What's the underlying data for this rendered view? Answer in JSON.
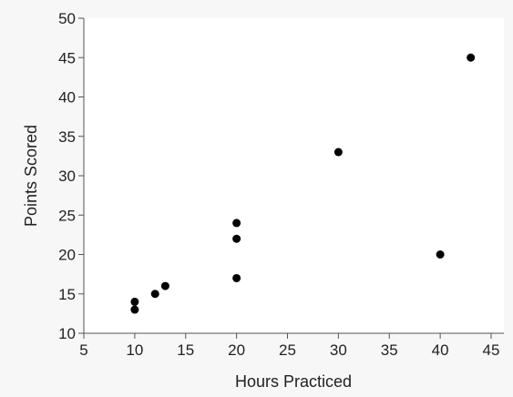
{
  "chart_data": {
    "type": "scatter",
    "title": "",
    "xlabel": "Hours Practiced",
    "ylabel": "Points Scored",
    "xlim": [
      5,
      45
    ],
    "ylim": [
      10,
      50
    ],
    "x_ticks": [
      "5",
      "10",
      "15",
      "20",
      "25",
      "30",
      "35",
      "40",
      "45"
    ],
    "y_ticks": [
      "10",
      "15",
      "20",
      "25",
      "30",
      "35",
      "40",
      "45",
      "50"
    ],
    "grid": false,
    "marker_color": "#000000",
    "background_color": "#ffffff",
    "points": [
      {
        "x": 10,
        "y": 14
      },
      {
        "x": 10,
        "y": 13
      },
      {
        "x": 12,
        "y": 15
      },
      {
        "x": 13,
        "y": 16
      },
      {
        "x": 20,
        "y": 24
      },
      {
        "x": 20,
        "y": 22
      },
      {
        "x": 20,
        "y": 17
      },
      {
        "x": 30,
        "y": 33
      },
      {
        "x": 40,
        "y": 20
      },
      {
        "x": 43,
        "y": 45
      }
    ]
  }
}
